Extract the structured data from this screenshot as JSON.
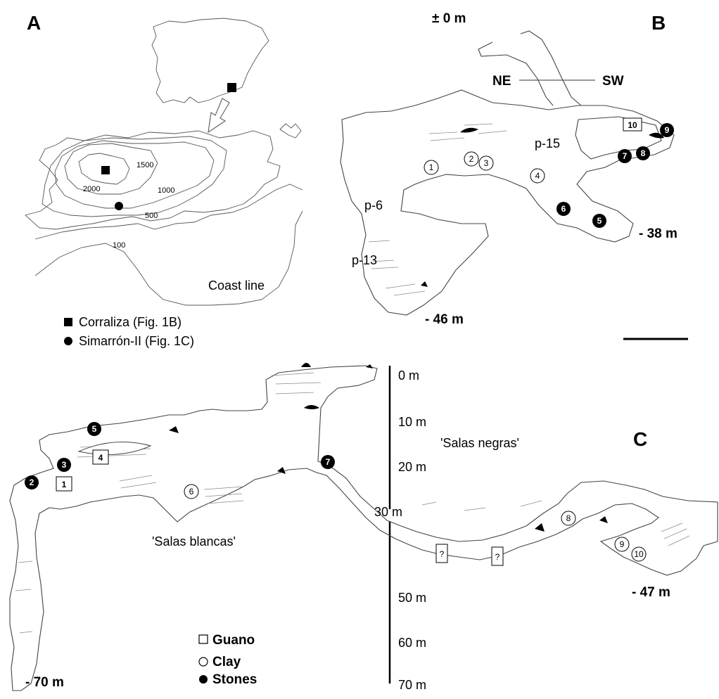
{
  "panels": {
    "a": {
      "letter": "A",
      "contours": [
        "2000",
        "1500",
        "1000",
        "500",
        "100"
      ],
      "coast_label": "Coast line",
      "legend": [
        {
          "symbol": "square",
          "label": "Corraliza (Fig. 1B)"
        },
        {
          "symbol": "circle",
          "label": "Simarrón-II (Fig. 1C)"
        }
      ]
    },
    "b": {
      "letter": "B",
      "datum": "± 0 m",
      "orientation": {
        "left": "NE",
        "right": "SW"
      },
      "shafts": [
        "p-15",
        "p-6",
        "p-13"
      ],
      "depths": [
        "- 38 m",
        "- 46 m"
      ],
      "markers": [
        {
          "label": "1",
          "style": "clay"
        },
        {
          "label": "2",
          "style": "clay"
        },
        {
          "label": "3",
          "style": "clay"
        },
        {
          "label": "4",
          "style": "clay"
        },
        {
          "label": "5",
          "style": "stones"
        },
        {
          "label": "6",
          "style": "stones"
        },
        {
          "label": "7",
          "style": "stones"
        },
        {
          "label": "8",
          "style": "stones"
        },
        {
          "label": "9",
          "style": "stones"
        },
        {
          "label": "10",
          "style": "guano"
        }
      ]
    },
    "c": {
      "letter": "C",
      "rooms": [
        "'Salas negras'",
        "'Salas blancas'"
      ],
      "depths": [
        "- 47 m",
        "- 70 m"
      ],
      "scale_ticks": [
        "0 m",
        "10 m",
        "20 m",
        "30 m",
        "50 m",
        "60 m",
        "70 m"
      ],
      "markers": [
        {
          "label": "1",
          "style": "guano"
        },
        {
          "label": "2",
          "style": "stones"
        },
        {
          "label": "3",
          "style": "stones"
        },
        {
          "label": "4",
          "style": "guano"
        },
        {
          "label": "5",
          "style": "stones"
        },
        {
          "label": "6",
          "style": "clay"
        },
        {
          "label": "7",
          "style": "stones"
        },
        {
          "label": "8",
          "style": "clay"
        },
        {
          "label": "9",
          "style": "clay"
        },
        {
          "label": "10",
          "style": "clay"
        },
        {
          "label": "?",
          "style": "guano"
        },
        {
          "label": "?",
          "style": "guano"
        }
      ],
      "legend": [
        {
          "symbol": "square",
          "label": "Guano"
        },
        {
          "symbol": "circle-open",
          "label": "Clay"
        },
        {
          "symbol": "circle-filled",
          "label": "Stones"
        }
      ]
    }
  }
}
